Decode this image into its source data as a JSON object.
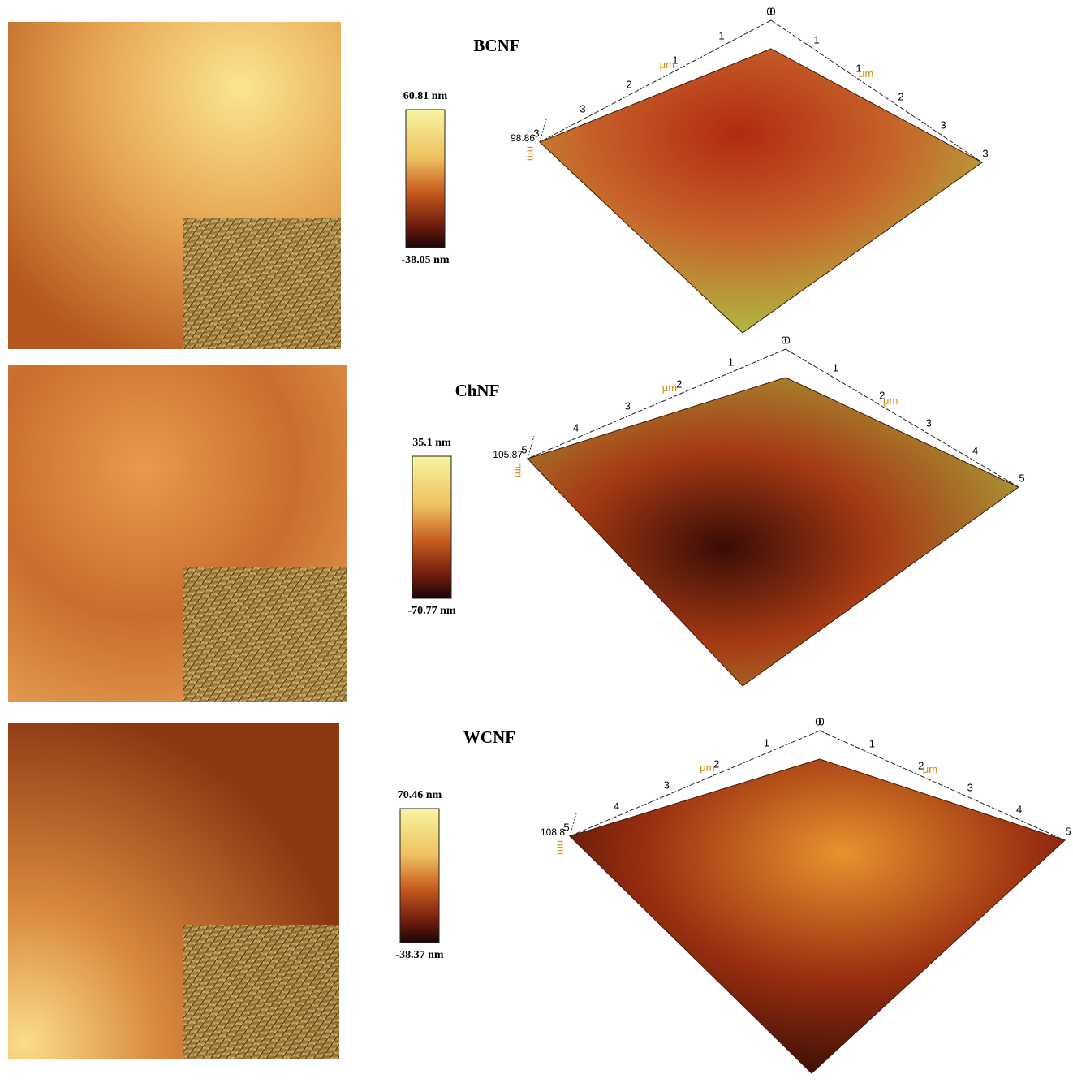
{
  "panels": [
    {
      "title": "BCNF",
      "scale_max": "60.81 nm",
      "scale_min": "-38.05 nm",
      "height": "98.86",
      "height_unit": "nm",
      "axis_unit": "μm",
      "left_axis": [
        "0",
        "1",
        "1",
        "2",
        "3",
        "3"
      ],
      "right_axis": [
        "0",
        "1",
        "1",
        "2",
        "3",
        "3"
      ]
    },
    {
      "title": "ChNF",
      "scale_max": "35.1 nm",
      "scale_min": "-70.77 nm",
      "height": "105.87",
      "height_unit": "nm",
      "axis_unit": "μm",
      "left_axis": [
        "0",
        "1",
        "2",
        "3",
        "4",
        "5"
      ],
      "right_axis": [
        "0",
        "1",
        "2",
        "3",
        "4",
        "5"
      ]
    },
    {
      "title": "WCNF",
      "scale_max": "70.46 nm",
      "scale_min": "-38.37 nm",
      "height": "108.8",
      "height_unit": "nm",
      "axis_unit": "μm",
      "left_axis": [
        "0",
        "1",
        "2",
        "3",
        "4",
        "5"
      ],
      "right_axis": [
        "0",
        "1",
        "2",
        "3",
        "4",
        "5"
      ]
    }
  ]
}
